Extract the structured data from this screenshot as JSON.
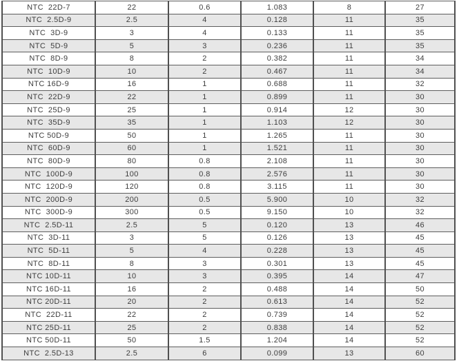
{
  "table": {
    "description": "NTC thermistor specification table (no header row visible in screenshot)",
    "stripe_color": "#e7e7e7",
    "grid_color": "#4f4f4f",
    "text_color": "#3d3d3d",
    "rows": [
      [
        "NTC  22D-7",
        "22",
        "0.6",
        "1.083",
        "8",
        "27"
      ],
      [
        "NTC  2.5D-9",
        "2.5",
        "4",
        "0.128",
        "11",
        "35"
      ],
      [
        "NTC  3D-9",
        "3",
        "4",
        "0.133",
        "11",
        "35"
      ],
      [
        "NTC  5D-9",
        "5",
        "3",
        "0.236",
        "11",
        "35"
      ],
      [
        "NTC  8D-9",
        "8",
        "2",
        "0.382",
        "11",
        "34"
      ],
      [
        "NTC  10D-9",
        "10",
        "2",
        "0.467",
        "11",
        "34"
      ],
      [
        "NTC 16D-9",
        "16",
        "1",
        "0.688",
        "11",
        "32"
      ],
      [
        "NTC  22D-9",
        "22",
        "1",
        "0.899",
        "11",
        "30"
      ],
      [
        "NTC  25D-9",
        "25",
        "1",
        "0.914",
        "12",
        "30"
      ],
      [
        "NTC  35D-9",
        "35",
        "1",
        "1.103",
        "12",
        "30"
      ],
      [
        "NTC 50D-9",
        "50",
        "1",
        "1.265",
        "11",
        "30"
      ],
      [
        "NTC  60D-9",
        "60",
        "1",
        "1.521",
        "11",
        "30"
      ],
      [
        "NTC  80D-9",
        "80",
        "0.8",
        "2.108",
        "11",
        "30"
      ],
      [
        "NTC  100D-9",
        "100",
        "0.8",
        "2.576",
        "11",
        "30"
      ],
      [
        "NTC  120D-9",
        "120",
        "0.8",
        "3.115",
        "11",
        "30"
      ],
      [
        "NTC  200D-9",
        "200",
        "0.5",
        "5.900",
        "10",
        "32"
      ],
      [
        "NTC  300D-9",
        "300",
        "0.5",
        "9.150",
        "10",
        "32"
      ],
      [
        "NTC  2.5D-11",
        "2.5",
        "5",
        "0.120",
        "13",
        "46"
      ],
      [
        "NTC  3D-11",
        "3",
        "5",
        "0.126",
        "13",
        "45"
      ],
      [
        "NTC  5D-11",
        "5",
        "4",
        "0.228",
        "13",
        "45"
      ],
      [
        "NTC  8D-11",
        "8",
        "3",
        "0.301",
        "13",
        "45"
      ],
      [
        "NTC 10D-11",
        "10",
        "3",
        "0.395",
        "14",
        "47"
      ],
      [
        "NTC 16D-11",
        "16",
        "2",
        "0.488",
        "14",
        "50"
      ],
      [
        "NTC 20D-11",
        "20",
        "2",
        "0.613",
        "14",
        "52"
      ],
      [
        "NTC  22D-11",
        "22",
        "2",
        "0.739",
        "14",
        "52"
      ],
      [
        "NTC 25D-11",
        "25",
        "2",
        "0.838",
        "14",
        "52"
      ],
      [
        "NTC 50D-11",
        "50",
        "1.5",
        "1.204",
        "14",
        "52"
      ],
      [
        "NTC  2.5D-13",
        "2.5",
        "6",
        "0.099",
        "13",
        "60"
      ]
    ]
  }
}
